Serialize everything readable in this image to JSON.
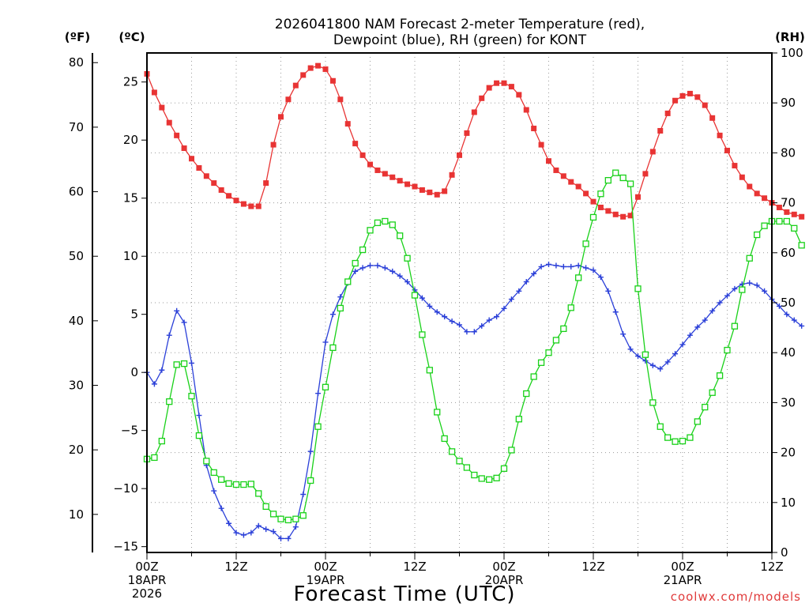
{
  "chart_data": {
    "type": "line",
    "title_line1": "2026041800 NAM Forecast 2-meter Temperature (red),",
    "title_line2": "Dewpoint (blue), RH (green) for KONT",
    "unit_left_f": "(ºF)",
    "unit_left_c": "(ºC)",
    "unit_right": "(RH)",
    "xlabel": "Forecast Time (UTC)",
    "credit": "coolwx.com/models",
    "x_start_hour": 0,
    "x_end_hour": 84,
    "x_step_hours": 1,
    "x_ticks": [
      {
        "hour": 0,
        "lines": [
          "00Z",
          "18APR",
          "2026"
        ]
      },
      {
        "hour": 12,
        "lines": [
          "12Z"
        ]
      },
      {
        "hour": 24,
        "lines": [
          "00Z",
          "19APR"
        ]
      },
      {
        "hour": 36,
        "lines": [
          "12Z"
        ]
      },
      {
        "hour": 48,
        "lines": [
          "00Z",
          "20APR"
        ]
      },
      {
        "hour": 60,
        "lines": [
          "12Z"
        ]
      },
      {
        "hour": 72,
        "lines": [
          "00Z",
          "21APR"
        ]
      },
      {
        "hour": 84,
        "lines": [
          "12Z"
        ]
      }
    ],
    "y_celsius": {
      "min": -15.5,
      "max": 27.5,
      "ticks": [
        -15,
        -10,
        -5,
        0,
        5,
        10,
        15,
        20,
        25
      ]
    },
    "y_fahrenheit_ticks": [
      10,
      20,
      30,
      40,
      50,
      60,
      70,
      80
    ],
    "y_rh": {
      "min": 0,
      "max": 100,
      "ticks": [
        0,
        10,
        20,
        30,
        40,
        50,
        60,
        70,
        80,
        90,
        100
      ]
    },
    "grid": true,
    "colors": {
      "temperature": "#e83434",
      "dewpoint": "#2a3fd8",
      "rh": "#19d119",
      "frame": "#000000",
      "grid": "#9a9a9a"
    },
    "series": [
      {
        "name": "Temperature (red)",
        "axis": "celsius",
        "marker": "filled-square",
        "values": [
          25.7,
          24.1,
          22.8,
          21.5,
          20.4,
          19.3,
          18.4,
          17.6,
          16.9,
          16.3,
          15.7,
          15.2,
          14.8,
          14.5,
          14.3,
          14.3,
          16.3,
          19.6,
          22.0,
          23.5,
          24.7,
          25.6,
          26.2,
          26.4,
          26.1,
          25.1,
          23.5,
          21.4,
          19.7,
          18.7,
          17.9,
          17.4,
          17.1,
          16.8,
          16.5,
          16.2,
          16.0,
          15.7,
          15.5,
          15.3,
          15.6,
          17.0,
          18.7,
          20.6,
          22.4,
          23.6,
          24.5,
          24.9,
          24.9,
          24.6,
          23.9,
          22.6,
          21.0,
          19.6,
          18.2,
          17.4,
          16.9,
          16.4,
          16.0,
          15.4,
          14.7,
          14.2,
          13.9,
          13.6,
          13.4,
          13.5,
          15.1,
          17.1,
          19.0,
          20.8,
          22.3,
          23.4,
          23.8,
          24.0,
          23.7,
          23.0,
          21.9,
          20.4,
          19.1,
          17.8,
          16.8,
          16.0,
          15.4,
          15.0,
          14.6,
          14.2,
          13.8,
          13.6,
          13.4
        ]
      },
      {
        "name": "Dewpoint (blue)",
        "axis": "celsius",
        "marker": "plus",
        "values": [
          0.0,
          -1.0,
          0.2,
          3.2,
          5.3,
          4.3,
          0.8,
          -3.7,
          -8.0,
          -10.2,
          -11.7,
          -13.0,
          -13.8,
          -14.0,
          -13.8,
          -13.2,
          -13.5,
          -13.7,
          -14.3,
          -14.3,
          -13.3,
          -10.5,
          -6.8,
          -1.8,
          2.6,
          5.0,
          6.5,
          7.7,
          8.7,
          9.0,
          9.2,
          9.2,
          9.0,
          8.7,
          8.3,
          7.8,
          7.1,
          6.4,
          5.7,
          5.2,
          4.8,
          4.4,
          4.1,
          3.5,
          3.5,
          4.0,
          4.5,
          4.8,
          5.5,
          6.3,
          7.0,
          7.8,
          8.5,
          9.1,
          9.3,
          9.2,
          9.1,
          9.1,
          9.2,
          9.0,
          8.8,
          8.2,
          7.0,
          5.2,
          3.3,
          2.0,
          1.4,
          1.0,
          0.6,
          0.3,
          0.9,
          1.6,
          2.4,
          3.2,
          3.9,
          4.5,
          5.3,
          6.0,
          6.6,
          7.2,
          7.6,
          7.7,
          7.5,
          7.0,
          6.3,
          5.7,
          5.0,
          4.5,
          4.0
        ]
      },
      {
        "name": "RH (green)",
        "axis": "rh",
        "marker": "open-square",
        "values": [
          18.7,
          19.0,
          22.3,
          30.2,
          37.6,
          37.8,
          31.3,
          23.4,
          18.3,
          16.0,
          14.6,
          13.8,
          13.6,
          13.6,
          13.7,
          11.8,
          9.2,
          7.7,
          6.7,
          6.5,
          6.7,
          7.4,
          14.4,
          25.2,
          33.1,
          41.0,
          48.9,
          54.2,
          57.9,
          60.6,
          64.5,
          66.0,
          66.3,
          65.6,
          63.4,
          58.9,
          51.5,
          43.6,
          36.5,
          28.1,
          22.8,
          20.2,
          18.3,
          17.0,
          15.5,
          14.8,
          14.6,
          14.9,
          16.8,
          20.5,
          26.7,
          31.8,
          35.2,
          38.0,
          40.0,
          42.5,
          44.8,
          49.0,
          55.0,
          61.8,
          67.1,
          71.8,
          74.5,
          76.0,
          75.0,
          73.8,
          52.8,
          39.6,
          30.0,
          25.2,
          23.0,
          22.2,
          22.3,
          23.0,
          26.2,
          29.1,
          32.0,
          35.4,
          40.5,
          45.3,
          52.6,
          58.9,
          63.6,
          65.4,
          66.3,
          66.3,
          66.3,
          64.9,
          61.5
        ]
      }
    ]
  }
}
